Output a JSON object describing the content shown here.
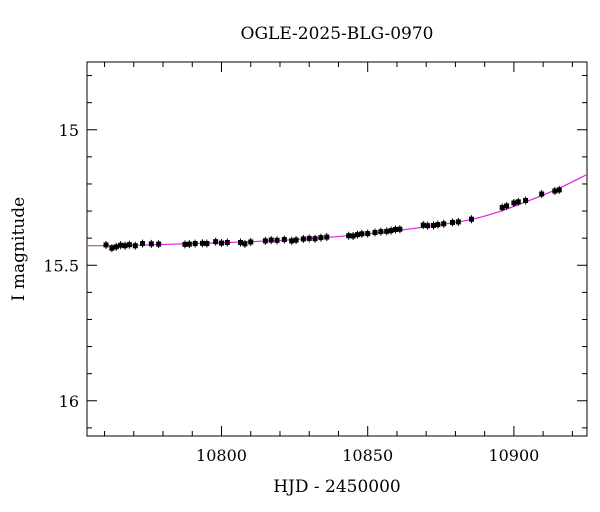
{
  "chart_data": {
    "type": "scatter",
    "title": "OGLE-2025-BLG-0970",
    "xlabel": "HJD - 2450000",
    "ylabel": "I magnitude",
    "xlim": [
      10754,
      10925
    ],
    "ylim": [
      16.13,
      14.75
    ],
    "y_inverted": true,
    "xticks": [
      10800,
      10850,
      10900
    ],
    "xtick_labels": [
      "10800",
      "10850",
      "10900"
    ],
    "yticks": [
      15,
      15.5,
      16
    ],
    "ytick_labels": [
      "15",
      "15.5",
      "16"
    ],
    "grid": false,
    "marker_color": "#000000",
    "model_color": "#e020e0",
    "series": [
      {
        "points": [
          [
            10760.5,
            15.425
          ],
          [
            10762.5,
            15.437
          ],
          [
            10764.0,
            15.432
          ],
          [
            10765.5,
            15.426
          ],
          [
            10767.0,
            15.428
          ],
          [
            10768.5,
            15.424
          ],
          [
            10770.5,
            15.428
          ],
          [
            10773.0,
            15.42
          ],
          [
            10776.0,
            15.421
          ],
          [
            10778.5,
            15.422
          ],
          [
            10787.5,
            15.423
          ],
          [
            10789.0,
            15.422
          ],
          [
            10791.0,
            15.42
          ],
          [
            10793.5,
            15.419
          ],
          [
            10795.0,
            15.42
          ],
          [
            10798.0,
            15.413
          ],
          [
            10800.0,
            15.418
          ],
          [
            10802.0,
            15.416
          ],
          [
            10806.5,
            15.416
          ],
          [
            10808.0,
            15.421
          ],
          [
            10810.0,
            15.414
          ],
          [
            10815.0,
            15.41
          ],
          [
            10817.0,
            15.407
          ],
          [
            10819.0,
            15.408
          ],
          [
            10821.5,
            15.405
          ],
          [
            10824.0,
            15.41
          ],
          [
            10825.5,
            15.407
          ],
          [
            10828.0,
            15.403
          ],
          [
            10830.0,
            15.401
          ],
          [
            10832.0,
            15.402
          ],
          [
            10834.0,
            15.398
          ],
          [
            10836.0,
            15.396
          ],
          [
            10843.5,
            15.391
          ],
          [
            10845.0,
            15.392
          ],
          [
            10846.5,
            15.387
          ],
          [
            10848.0,
            15.384
          ],
          [
            10850.0,
            15.383
          ],
          [
            10852.5,
            15.379
          ],
          [
            10854.5,
            15.376
          ],
          [
            10856.5,
            15.375
          ],
          [
            10858.0,
            15.372
          ],
          [
            10859.5,
            15.368
          ],
          [
            10861.0,
            15.367
          ],
          [
            10869.0,
            15.352
          ],
          [
            10870.5,
            15.354
          ],
          [
            10872.5,
            15.353
          ],
          [
            10874.0,
            15.35
          ],
          [
            10876.0,
            15.347
          ],
          [
            10879.0,
            15.342
          ],
          [
            10881.0,
            15.34
          ],
          [
            10885.5,
            15.33
          ],
          [
            10896.0,
            15.287
          ],
          [
            10897.5,
            15.281
          ],
          [
            10900.0,
            15.27
          ],
          [
            10901.5,
            15.266
          ],
          [
            10904.0,
            15.261
          ],
          [
            10909.5,
            15.237
          ],
          [
            10914.0,
            15.226
          ],
          [
            10915.5,
            15.222
          ]
        ]
      }
    ],
    "model_curve": [
      [
        10754,
        15.428
      ],
      [
        10770,
        15.426
      ],
      [
        10790,
        15.42
      ],
      [
        10810,
        15.413
      ],
      [
        10830,
        15.402
      ],
      [
        10850,
        15.384
      ],
      [
        10870,
        15.358
      ],
      [
        10885,
        15.332
      ],
      [
        10895,
        15.302
      ],
      [
        10905,
        15.262
      ],
      [
        10915,
        15.218
      ],
      [
        10925,
        15.165
      ]
    ]
  }
}
